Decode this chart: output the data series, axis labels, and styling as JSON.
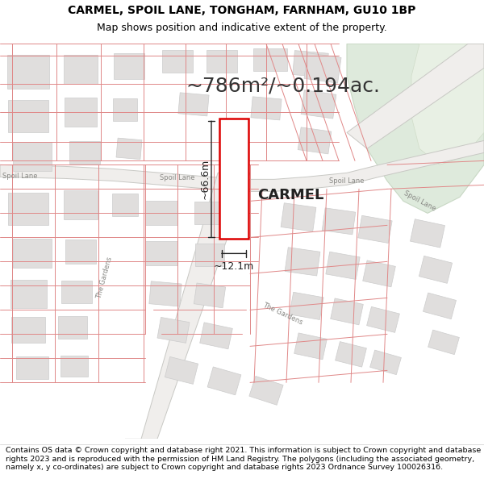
{
  "title_line1": "CARMEL, SPOIL LANE, TONGHAM, FARNHAM, GU10 1BP",
  "title_line2": "Map shows position and indicative extent of the property.",
  "area_label": "~786m²/~0.194ac.",
  "property_name": "CARMEL",
  "dim_width": "~12.1m",
  "dim_height": "~66.6m",
  "footer": "Contains OS data © Crown copyright and database right 2021. This information is subject to Crown copyright and database rights 2023 and is reproduced with the permission of HM Land Registry. The polygons (including the associated geometry, namely x, y co-ordinates) are subject to Crown copyright and database rights 2023 Ordnance Survey 100026316.",
  "map_bg": "#ffffff",
  "building_fill": "#e0dedd",
  "building_edge": "#cccccc",
  "boundary_line_color": "#e08888",
  "road_fill": "#f0eeec",
  "road_edge": "#c8c8c4",
  "green_fill": "#deeadc",
  "green_edge": "#c8d8c4",
  "property_edge_color": "#dd0000",
  "dim_line_color": "#222222",
  "label_color": "#888884",
  "title_fontsize": 10,
  "subtitle_fontsize": 9,
  "area_fontsize": 18,
  "property_name_fontsize": 13,
  "footer_fontsize": 6.8,
  "dim_fontsize": 9,
  "road_label_fontsize": 6
}
